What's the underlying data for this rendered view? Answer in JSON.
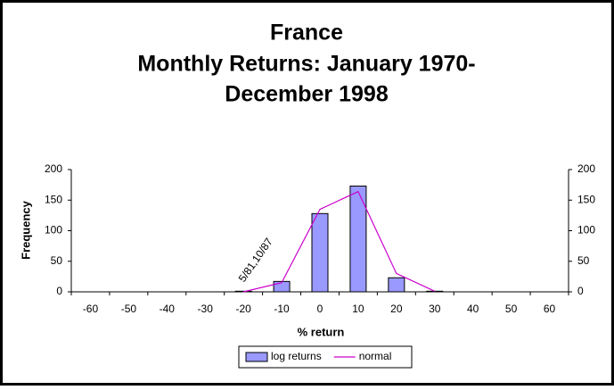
{
  "chart_data": {
    "type": "bar",
    "title": [
      "France",
      "Monthly Returns: January 1970-",
      "December 1998"
    ],
    "x_label": "% return",
    "y_label": "Frequency",
    "categories": [
      -60,
      -50,
      -40,
      -30,
      -20,
      -10,
      0,
      10,
      20,
      30,
      40,
      50,
      60
    ],
    "series": [
      {
        "name": "log returns",
        "type": "bar",
        "color": "#9999ff",
        "values": [
          0,
          0,
          0,
          0,
          1,
          17,
          128,
          173,
          23,
          1,
          0,
          0,
          0
        ]
      },
      {
        "name": "normal",
        "type": "line",
        "color": "#cc00cc",
        "axis": "y2",
        "values": [
          null,
          null,
          null,
          null,
          0,
          15,
          135,
          164,
          30,
          1,
          null,
          null,
          null
        ]
      }
    ],
    "ylim": [
      0,
      200
    ],
    "yticks": [
      0,
      50,
      100,
      150,
      200
    ],
    "y2lim": [
      0,
      200
    ],
    "y2ticks": [
      0,
      50,
      100,
      150,
      200
    ],
    "annotation": "5/81,10/87",
    "legend": "bottom"
  }
}
